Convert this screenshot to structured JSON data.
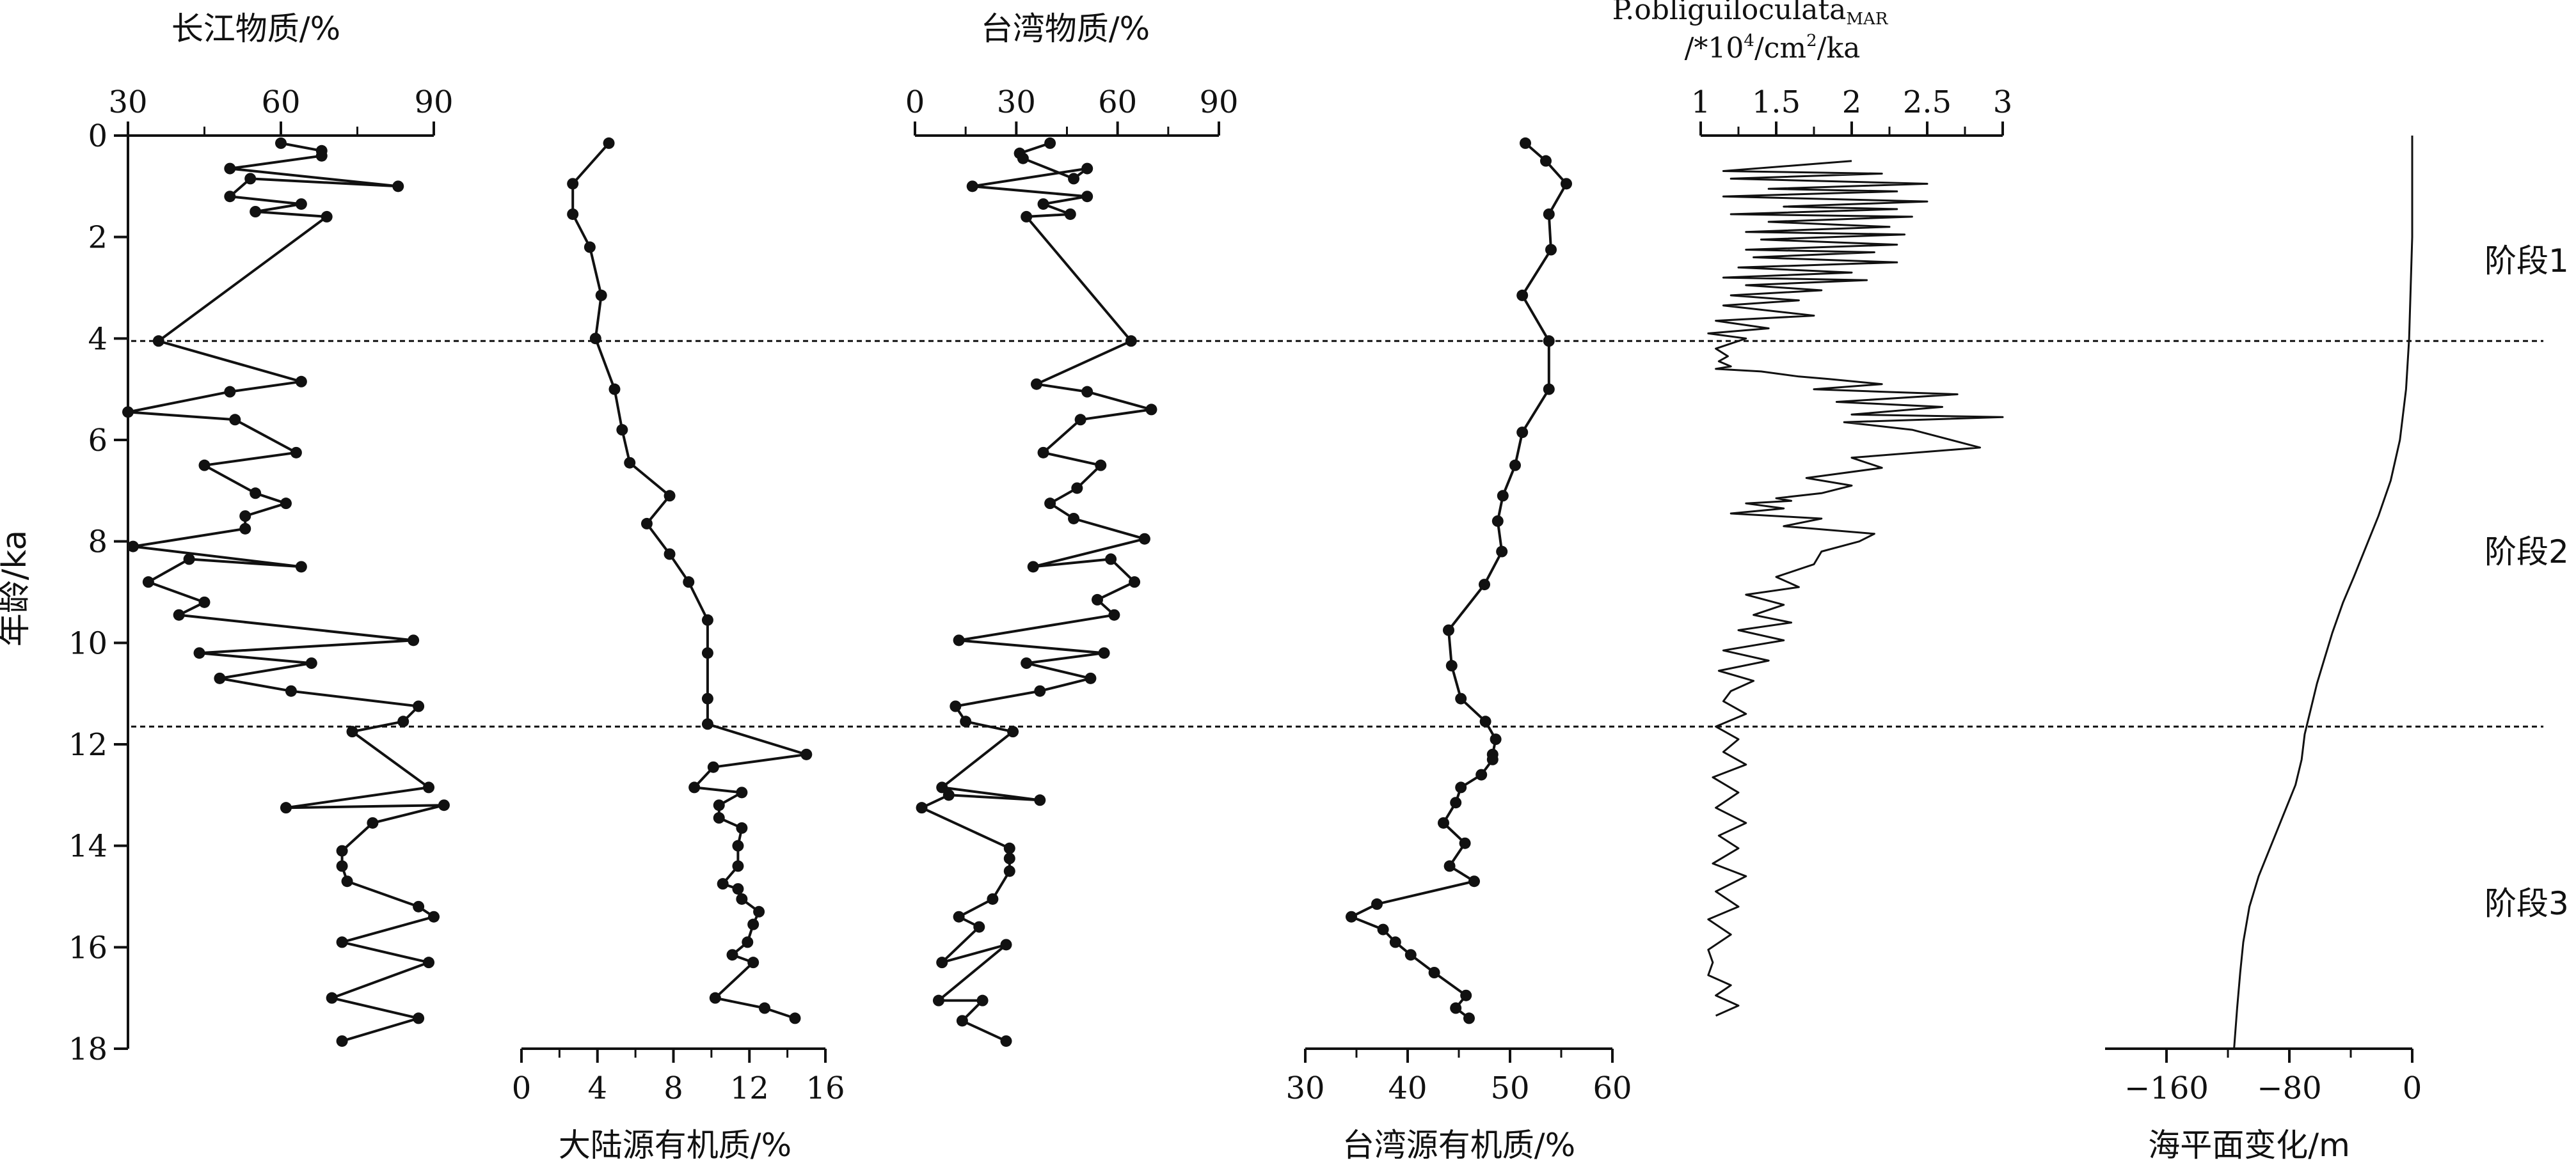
{
  "chart_data": {
    "type": "line",
    "layout": "multi-panel stratigraphic plot sharing a vertical age axis",
    "y_axis": {
      "label": "年龄/ka",
      "range": [
        0,
        18
      ],
      "ticks": [
        0,
        2,
        4,
        6,
        8,
        10,
        12,
        14,
        16,
        18
      ],
      "reversed": true
    },
    "stage_boundaries": [
      4.05,
      11.65
    ],
    "stage_labels": [
      {
        "text": "阶段1",
        "age": 2.5
      },
      {
        "text": "阶段2",
        "age": 8.1
      },
      {
        "text": "阶段3",
        "age": 15.6
      }
    ],
    "panels": [
      {
        "key": "p1",
        "xlabel": "长江物质/%",
        "axis": "top",
        "xlim": [
          30,
          90
        ],
        "ticks": [
          30,
          60,
          90
        ],
        "minor_ticks": [
          45,
          75
        ],
        "markers": true,
        "series": {
          "x": [
            60,
            68,
            68,
            50,
            83,
            54,
            50,
            64,
            55,
            69,
            36,
            64,
            50,
            30,
            51,
            63,
            45,
            55,
            61,
            53,
            53,
            31,
            64,
            42,
            34,
            45,
            40,
            86,
            44,
            66,
            48,
            62,
            87,
            84,
            74,
            89,
            61,
            92,
            78,
            72,
            72,
            73,
            87,
            90,
            72,
            89,
            70,
            87,
            72
          ],
          "y": [
            0.15,
            0.3,
            0.4,
            0.65,
            1.0,
            0.85,
            1.2,
            1.35,
            1.5,
            1.6,
            4.05,
            4.85,
            5.05,
            5.45,
            5.6,
            6.25,
            6.5,
            7.05,
            7.25,
            7.5,
            7.75,
            8.1,
            8.5,
            8.35,
            8.8,
            9.2,
            9.45,
            9.95,
            10.2,
            10.4,
            10.7,
            10.95,
            11.25,
            11.55,
            11.75,
            12.85,
            13.25,
            13.2,
            13.55,
            14.1,
            14.4,
            14.7,
            15.2,
            15.4,
            15.9,
            16.3,
            17.0,
            17.4,
            17.85
          ]
        }
      },
      {
        "key": "p2",
        "xlabel": "大陆源有机质/%",
        "axis": "bottom",
        "xlim": [
          0,
          16
        ],
        "ticks": [
          0,
          4,
          8,
          12,
          16
        ],
        "minor_ticks": [
          2,
          6,
          10,
          14
        ],
        "markers": true,
        "series": {
          "x": [
            4.6,
            2.7,
            2.7,
            3.6,
            4.2,
            3.9,
            4.9,
            5.3,
            5.7,
            7.8,
            6.6,
            7.8,
            8.8,
            9.8,
            9.8,
            9.8,
            9.8,
            15.0,
            10.1,
            9.1,
            11.6,
            10.4,
            10.4,
            11.6,
            11.4,
            11.4,
            10.6,
            11.4,
            11.6,
            12.5,
            12.2,
            11.9,
            11.1,
            12.2,
            10.2,
            12.8,
            14.4
          ],
          "y": [
            0.15,
            0.95,
            1.55,
            2.2,
            3.15,
            4.0,
            5.0,
            5.8,
            6.45,
            7.1,
            7.65,
            8.25,
            8.8,
            9.55,
            10.2,
            11.1,
            11.6,
            12.2,
            12.45,
            12.85,
            12.95,
            13.2,
            13.45,
            13.65,
            14.0,
            14.4,
            14.75,
            14.85,
            15.05,
            15.3,
            15.55,
            15.9,
            16.15,
            16.3,
            17.0,
            17.2,
            17.4
          ]
        }
      },
      {
        "key": "p3",
        "xlabel": "台湾物质/%",
        "axis": "top",
        "xlim": [
          0,
          90
        ],
        "ticks": [
          0,
          30,
          60,
          90
        ],
        "minor_ticks": [
          15,
          45,
          75
        ],
        "markers": true,
        "series": {
          "x": [
            40,
            31,
            32,
            47,
            51,
            17,
            51,
            38,
            46,
            33,
            64,
            36,
            51,
            70,
            49,
            38,
            55,
            48,
            40,
            47,
            68,
            35,
            58,
            65,
            54,
            59,
            13,
            56,
            33,
            52,
            37,
            12,
            15,
            29,
            8,
            37,
            10,
            2,
            28,
            28,
            28,
            23,
            13,
            19,
            8,
            27,
            7,
            20,
            14,
            27
          ],
          "y": [
            0.15,
            0.35,
            0.45,
            0.85,
            0.65,
            1.0,
            1.2,
            1.35,
            1.55,
            1.6,
            4.05,
            4.9,
            5.05,
            5.4,
            5.6,
            6.25,
            6.5,
            6.95,
            7.25,
            7.55,
            7.95,
            8.5,
            8.35,
            8.8,
            9.15,
            9.45,
            9.95,
            10.2,
            10.4,
            10.7,
            10.95,
            11.25,
            11.55,
            11.75,
            12.85,
            13.1,
            13.0,
            13.25,
            14.05,
            14.25,
            14.5,
            15.05,
            15.4,
            15.6,
            16.3,
            15.95,
            17.05,
            17.05,
            17.45,
            17.85
          ]
        }
      },
      {
        "key": "p4",
        "xlabel": "台湾源有机质/%",
        "axis": "bottom",
        "xlim": [
          30,
          60
        ],
        "ticks": [
          30,
          40,
          50,
          60
        ],
        "minor_ticks": [
          35,
          45,
          55
        ],
        "markers": true,
        "series": {
          "x": [
            51.5,
            53.5,
            55.5,
            53.8,
            54.0,
            51.2,
            53.8,
            53.8,
            51.2,
            50.5,
            49.3,
            48.8,
            49.2,
            47.5,
            44.0,
            44.3,
            45.2,
            47.6,
            48.6,
            48.3,
            48.3,
            47.2,
            45.2,
            44.7,
            43.5,
            45.6,
            44.1,
            46.5,
            37.0,
            34.5,
            37.6,
            38.8,
            40.3,
            42.6,
            45.7,
            44.7,
            46.0
          ],
          "y": [
            0.15,
            0.5,
            0.95,
            1.55,
            2.25,
            3.15,
            4.05,
            5.0,
            5.85,
            6.5,
            7.1,
            7.6,
            8.2,
            8.85,
            9.75,
            10.45,
            11.1,
            11.55,
            11.9,
            12.2,
            12.3,
            12.6,
            12.85,
            13.15,
            13.55,
            13.95,
            14.4,
            14.7,
            15.15,
            15.4,
            15.65,
            15.9,
            16.15,
            16.5,
            16.95,
            17.2,
            17.4
          ]
        }
      },
      {
        "key": "p5",
        "xlabel": "P.obliguiloculata",
        "xlabel_sub": "MAR",
        "xlabel_line2": "/*10",
        "xlabel_sup": "4",
        "xlabel_mid": "/cm",
        "xlabel_sup2": "2",
        "xlabel_end": "/ka",
        "axis": "top",
        "xlim": [
          1,
          3
        ],
        "ticks": [
          "1",
          "1.5",
          "2",
          "2.5",
          "3"
        ],
        "tick_values": [
          1,
          1.5,
          2,
          2.5,
          3
        ],
        "minor_ticks": [
          1.25,
          1.75,
          2.25,
          2.75
        ],
        "markers": false,
        "series": {
          "x": [
            2.0,
            1.15,
            2.2,
            1.2,
            2.5,
            1.45,
            2.3,
            1.15,
            2.5,
            1.55,
            2.3,
            1.2,
            2.4,
            1.45,
            2.25,
            1.3,
            2.35,
            1.4,
            2.3,
            1.3,
            2.15,
            1.35,
            2.3,
            1.25,
            2.0,
            1.15,
            2.1,
            1.3,
            1.8,
            1.2,
            1.65,
            1.15,
            1.75,
            1.1,
            1.45,
            1.05,
            1.3,
            1.1,
            1.18,
            1.12,
            1.2,
            1.1,
            1.4,
            1.65,
            1.85,
            2.2,
            1.75,
            2.2,
            2.7,
            1.9,
            2.6,
            2.0,
            3.0,
            1.95,
            2.4,
            2.85,
            2.0,
            2.2,
            1.7,
            2.0,
            1.8,
            1.5,
            1.6,
            1.3,
            1.55,
            1.2,
            1.8,
            1.55,
            2.15,
            2.05,
            1.8,
            1.75,
            1.5,
            1.65,
            1.3,
            1.55,
            1.35,
            1.6,
            1.25,
            1.55,
            1.15,
            1.45,
            1.12,
            1.35,
            1.2,
            1.15,
            1.3,
            1.1,
            1.25,
            1.15,
            1.3,
            1.08,
            1.25,
            1.1,
            1.3,
            1.12,
            1.25,
            1.08,
            1.3,
            1.1,
            1.25,
            1.05,
            1.2,
            1.05,
            1.08,
            1.05,
            1.2,
            1.1,
            1.25,
            1.1
          ],
          "y": [
            0.5,
            0.7,
            0.75,
            0.85,
            0.95,
            1.05,
            1.1,
            1.2,
            1.3,
            1.4,
            1.45,
            1.55,
            1.6,
            1.7,
            1.8,
            1.9,
            1.95,
            2.05,
            2.15,
            2.25,
            2.3,
            2.4,
            2.5,
            2.6,
            2.7,
            2.8,
            2.85,
            2.95,
            3.05,
            3.15,
            3.25,
            3.35,
            3.55,
            3.65,
            3.8,
            3.9,
            4.0,
            4.2,
            4.35,
            4.45,
            4.55,
            4.6,
            4.65,
            4.75,
            4.8,
            4.9,
            5.0,
            5.05,
            5.1,
            5.25,
            5.35,
            5.5,
            5.55,
            5.65,
            5.8,
            6.15,
            6.35,
            6.55,
            6.75,
            6.9,
            7.05,
            7.15,
            7.2,
            7.25,
            7.35,
            7.45,
            7.55,
            7.7,
            7.85,
            8.0,
            8.2,
            8.45,
            8.7,
            8.9,
            9.05,
            9.25,
            9.45,
            9.6,
            9.75,
            9.95,
            10.15,
            10.35,
            10.55,
            10.75,
            10.95,
            11.15,
            11.4,
            11.65,
            11.9,
            12.15,
            12.4,
            12.65,
            12.95,
            13.25,
            13.55,
            13.8,
            14.05,
            14.35,
            14.6,
            14.9,
            15.2,
            15.45,
            15.75,
            16.05,
            16.3,
            16.55,
            16.75,
            16.95,
            17.15,
            17.35
          ]
        }
      },
      {
        "key": "p6",
        "xlabel": "海平面变化/m",
        "axis": "bottom",
        "xlim": [
          -200,
          0
        ],
        "ticks": [
          -160,
          -80,
          0
        ],
        "tick_labels": [
          "−160",
          "−80",
          "0"
        ],
        "minor_ticks": [
          -120,
          -40
        ],
        "markers": false,
        "series": {
          "x": [
            0,
            0,
            -1,
            -2,
            -4,
            -8,
            -14,
            -22,
            -30,
            -38,
            -45,
            -52,
            -57,
            -62,
            -66,
            -70,
            -72,
            -76,
            -84,
            -92,
            -100,
            -106,
            -110,
            -112,
            -114,
            -116
          ],
          "y": [
            0,
            2,
            3,
            4,
            5,
            6,
            6.8,
            7.5,
            8.1,
            8.7,
            9.2,
            9.8,
            10.3,
            10.8,
            11.3,
            11.8,
            12.3,
            12.8,
            13.4,
            14.0,
            14.6,
            15.2,
            15.9,
            16.5,
            17.2,
            18
          ]
        }
      }
    ]
  }
}
